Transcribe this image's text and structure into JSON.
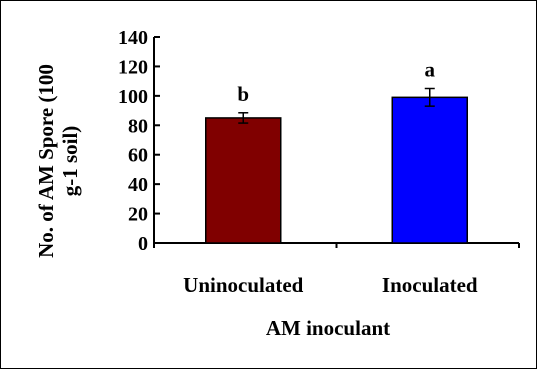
{
  "chart_data": {
    "type": "bar",
    "categories": [
      "Uninoculated",
      "Inoculated"
    ],
    "series": [
      {
        "values": [
          85,
          99
        ],
        "errors": [
          3.5,
          6
        ],
        "colors": [
          "#800000",
          "#0000ff"
        ]
      }
    ],
    "significance_labels": [
      "b",
      "a"
    ],
    "xlabel": "AM inoculant",
    "ylabel": "No. of AM Spore (100 g-1 soil)",
    "ylim": [
      0,
      140
    ],
    "yticks": [
      "0",
      "20",
      "40",
      "60",
      "80",
      "100",
      "120",
      "140"
    ],
    "grid": false,
    "legend": "none"
  }
}
